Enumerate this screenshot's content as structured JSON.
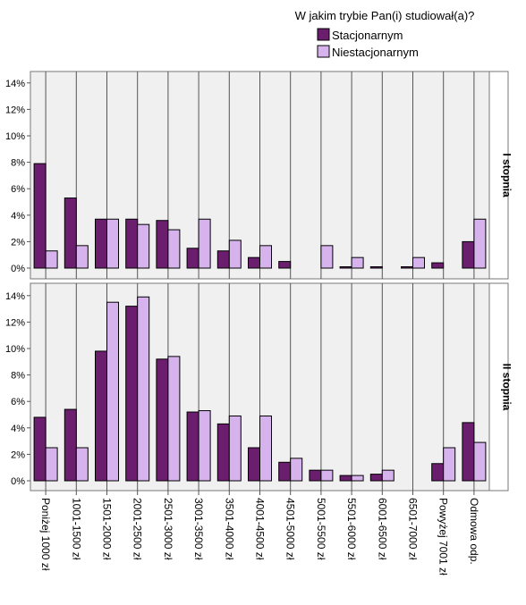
{
  "legend": {
    "title": "W jakim trybie Pan(i) studiował(a)?",
    "items": [
      {
        "label": "Stacjonarnym",
        "color": "#6b1e6e"
      },
      {
        "label": "Niestacjonarnym",
        "color": "#d7b3ee"
      }
    ]
  },
  "chart_data": {
    "type": "bar",
    "layout": "paneled grouped bar, two rows",
    "legend_position": "top-right",
    "grid": "vertical lines at category centers",
    "categories": [
      "Poniżej 1000 zł",
      "1001-1500 zł",
      "1501-2000 zł",
      "2001-2500 zł",
      "2501-3000 zł",
      "3001-3500 zł",
      "3501-4000 zł",
      "4001-4500 zł",
      "4501-5000 zł",
      "5001-5500 zł",
      "5501-6000 zł",
      "6001-6500 zł",
      "6501-7000 zł",
      "Powyżej 7001 zł",
      "Odmowa odp."
    ],
    "y_ticks": [
      "0%",
      "2%",
      "4%",
      "6%",
      "8%",
      "10%",
      "12%",
      "14%"
    ],
    "ylim": [
      0,
      14
    ],
    "panels": [
      {
        "label": "I stopnia",
        "series": [
          {
            "name": "Stacjonarnym",
            "values": [
              7.9,
              5.3,
              3.7,
              3.7,
              3.6,
              1.5,
              1.3,
              0.8,
              0.5,
              0,
              0.1,
              0.1,
              0.05,
              0.4,
              2.0
            ]
          },
          {
            "name": "Niestacjonarnym",
            "values": [
              1.3,
              1.7,
              3.7,
              3.3,
              2.9,
              3.7,
              2.1,
              1.7,
              0,
              1.7,
              0.8,
              0,
              0.8,
              0,
              3.7
            ]
          }
        ]
      },
      {
        "label": "II stopnia",
        "series": [
          {
            "name": "Stacjonarnym",
            "values": [
              4.8,
              5.4,
              9.8,
              13.2,
              9.2,
              5.2,
              4.3,
              2.5,
              1.4,
              0.8,
              0.4,
              0.5,
              0,
              1.3,
              4.4
            ]
          },
          {
            "name": "Niestacjonarnym",
            "values": [
              2.5,
              2.5,
              13.5,
              13.9,
              9.4,
              5.3,
              4.9,
              4.9,
              1.7,
              0.8,
              0.4,
              0.8,
              0,
              2.5,
              2.9
            ]
          }
        ]
      }
    ]
  }
}
